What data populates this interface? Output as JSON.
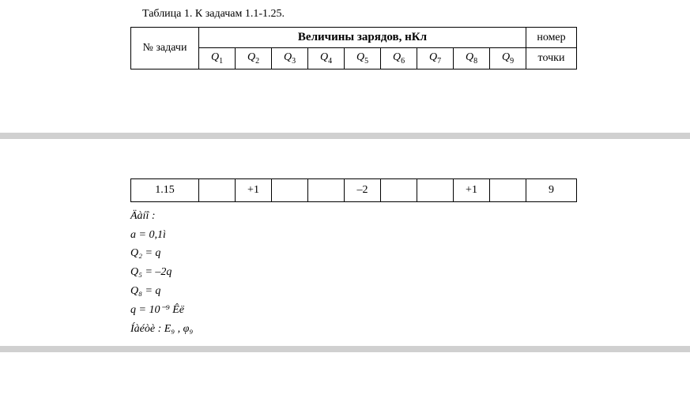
{
  "caption": "Таблица 1. К задачам 1.1-1.25.",
  "header": {
    "task_col": "№ задачи",
    "main": "Величины зарядов, нКл",
    "point_col_line1": "номер",
    "point_col_line2": "точки",
    "q_labels": [
      "Q",
      "Q",
      "Q",
      "Q",
      "Q",
      "Q",
      "Q",
      "Q",
      "Q"
    ],
    "q_subs": [
      "1",
      "2",
      "3",
      "4",
      "5",
      "6",
      "7",
      "8",
      "9"
    ]
  },
  "row": {
    "task": "1.15",
    "q": [
      "",
      "+1",
      "",
      "",
      "–2",
      "",
      "",
      "+1",
      ""
    ],
    "point": "9"
  },
  "formulas": {
    "given": "Äàíî :",
    "a": "a = 0,1ì",
    "q2": "Q₂ = q",
    "q5": "Q₅ = –2q",
    "q8": "Q₈ = q",
    "qval": "q = 10⁻⁹ Êë",
    "find": "Íàéòè : E₉ , φ₉"
  }
}
